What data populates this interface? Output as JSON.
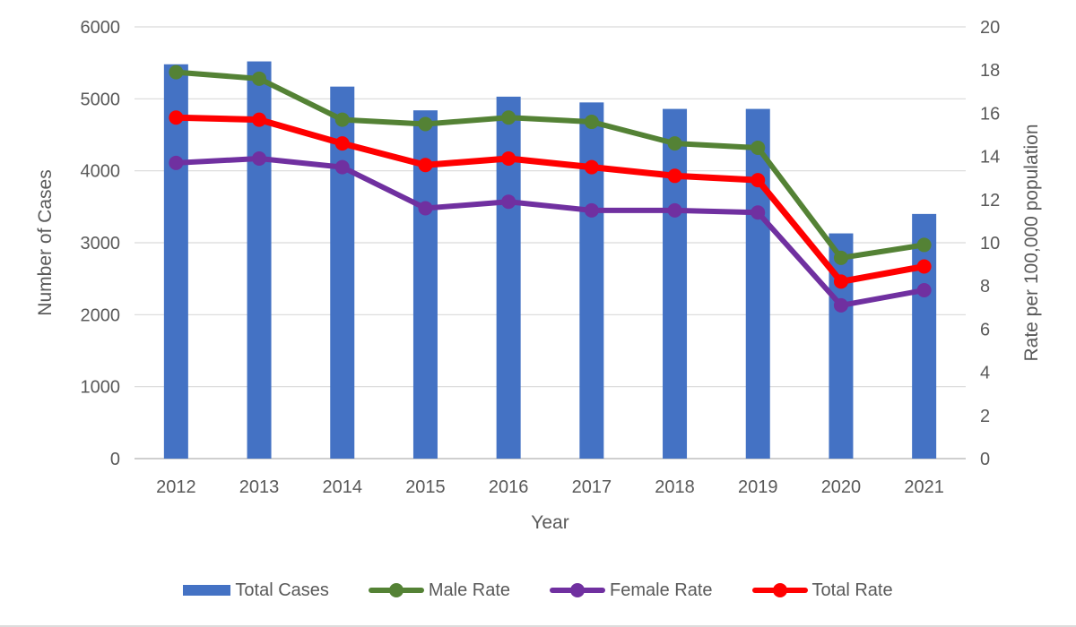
{
  "chart_data": {
    "type": "combo",
    "categories": [
      "2012",
      "2013",
      "2014",
      "2015",
      "2016",
      "2017",
      "2018",
      "2019",
      "2020",
      "2021"
    ],
    "series": [
      {
        "name": "Total Cases",
        "type": "bar",
        "axis": "left",
        "color": "#4472C4",
        "values": [
          5480,
          5520,
          5170,
          4840,
          5030,
          4950,
          4860,
          4860,
          3130,
          3400
        ]
      },
      {
        "name": "Male Rate",
        "type": "line",
        "axis": "right",
        "color": "#548235",
        "values": [
          17.9,
          17.6,
          15.7,
          15.5,
          15.8,
          15.6,
          14.6,
          14.4,
          9.3,
          9.9
        ]
      },
      {
        "name": "Female Rate",
        "type": "line",
        "axis": "right",
        "color": "#7030A0",
        "values": [
          13.7,
          13.9,
          13.5,
          11.6,
          11.9,
          11.5,
          11.5,
          11.4,
          7.1,
          7.8
        ]
      },
      {
        "name": "Total Rate",
        "type": "line",
        "axis": "right",
        "color": "#FF0000",
        "values": [
          15.8,
          15.7,
          14.6,
          13.6,
          13.9,
          13.5,
          13.1,
          12.9,
          8.2,
          8.9
        ]
      }
    ],
    "xlabel": "Year",
    "ylabel_left": "Number of Cases",
    "ylabel_right": "Rate per 100,000 population",
    "left_axis": {
      "min": 0,
      "max": 6000,
      "step": 1000
    },
    "right_axis": {
      "min": 0,
      "max": 20,
      "step": 2
    },
    "grid": "horizontal",
    "legend_position": "bottom"
  },
  "colors": {
    "grid": "#D9D9D9",
    "baseline": "#BFBFBF",
    "axis_text": "#595959"
  }
}
